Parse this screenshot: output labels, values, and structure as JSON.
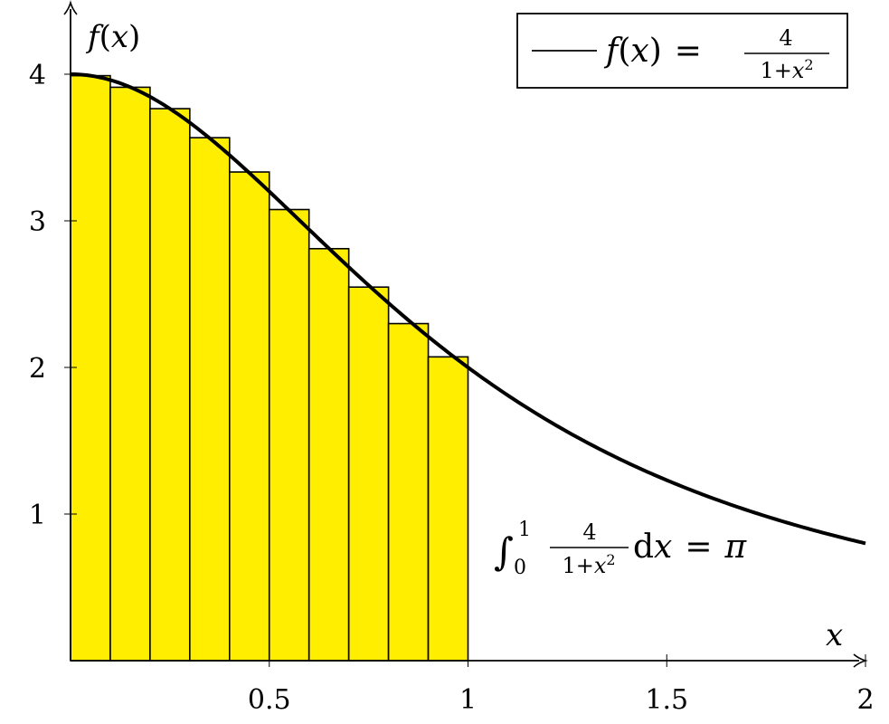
{
  "chart_data": {
    "type": "bar",
    "title": "",
    "xlabel": "x",
    "ylabel": "f(x)",
    "xlim": [
      0,
      2
    ],
    "ylim": [
      0,
      4.4
    ],
    "grid": false,
    "legend_position": "top-right",
    "x_ticks": [
      {
        "value": 0.5,
        "label": "0.5"
      },
      {
        "value": 1,
        "label": "1"
      },
      {
        "value": 1.5,
        "label": "1.5"
      },
      {
        "value": 2,
        "label": "2"
      }
    ],
    "y_ticks": [
      {
        "value": 1,
        "label": "1"
      },
      {
        "value": 2,
        "label": "2"
      },
      {
        "value": 3,
        "label": "3"
      },
      {
        "value": 4,
        "label": "4"
      }
    ],
    "bars": {
      "x_left": [
        0.0,
        0.1,
        0.2,
        0.3,
        0.4,
        0.5,
        0.6,
        0.7,
        0.8,
        0.9
      ],
      "width": 0.1,
      "values": [
        3.99,
        3.911,
        3.765,
        3.567,
        3.333,
        3.077,
        2.81,
        2.548,
        2.299,
        2.072
      ],
      "fill": "#ffee00",
      "stroke": "#000000"
    },
    "series": [
      {
        "type": "line",
        "function": "4/(1+x^2)",
        "x_range": [
          0,
          2
        ],
        "sample_x": [
          0,
          0.25,
          0.5,
          0.75,
          1.0,
          1.25,
          1.5,
          1.75,
          2.0
        ],
        "sample_y": [
          4.0,
          3.765,
          3.2,
          2.56,
          2.0,
          1.561,
          1.231,
          0.985,
          0.8
        ],
        "color": "#000000"
      }
    ],
    "legend": {
      "entry_f": "f",
      "entry_x": "x",
      "entry_eq": "=",
      "entry_num": "4",
      "entry_den_prefix": "1+",
      "entry_den_var": "x",
      "entry_den_exp": "2"
    },
    "annotation": {
      "integral_sign": "∫",
      "upper": "1",
      "lower": "0",
      "frac_num": "4",
      "frac_den_prefix": "1+",
      "frac_den_var": "x",
      "frac_den_exp": "2",
      "differential": "d",
      "variable": "x",
      "equals": "=",
      "result": "π"
    },
    "axis_labels": {
      "y_f": "f",
      "y_x": "x",
      "x": "x"
    }
  }
}
